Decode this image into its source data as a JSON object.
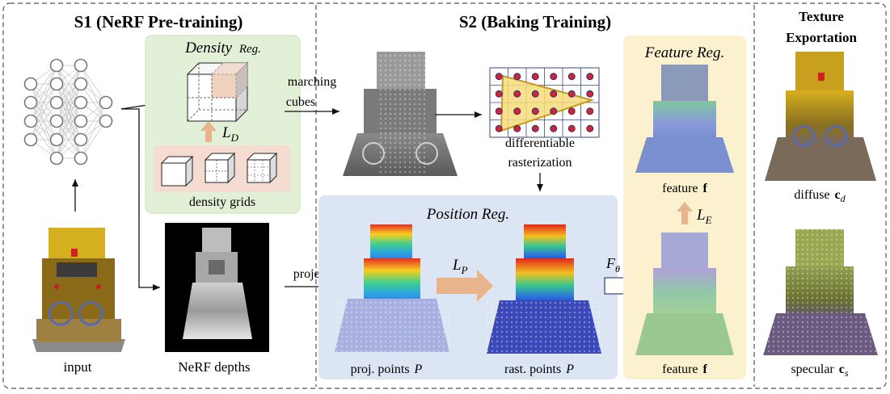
{
  "stages": {
    "s1_title": "S1 (NeRF Pre-training)",
    "s2_title": "S2 (Baking Training)",
    "s3_title_line1": "Texture",
    "s3_title_line2": "Exportation"
  },
  "density_reg": {
    "title": "Density",
    "title_suffix": "Reg.",
    "loss_label": "L",
    "loss_sub": "D",
    "grids_label": "density  grids"
  },
  "position_reg": {
    "title": "Position Reg.",
    "loss_label": "L",
    "loss_sub": "P",
    "proj_label": "proj. points",
    "proj_symbol": "P",
    "rast_label": "rast. points",
    "rast_symbol": "P"
  },
  "feature_reg": {
    "title": "Feature Reg.",
    "loss_label": "L",
    "loss_sub": "E",
    "feature_hat_label": "feature",
    "feature_hat_symbol": "f",
    "feature_label": "feature",
    "feature_symbol": "f"
  },
  "labels": {
    "input": "input",
    "nerf_depths": "NeRF depths",
    "marching": "marching",
    "cubes": "cubes",
    "project": "project",
    "diff_line1": "differentiable",
    "diff_line2": "rasterization",
    "f_theta": "F",
    "f_theta_sub": "θ"
  },
  "texture": {
    "diffuse_label": "diffuse",
    "diffuse_symbol": "c",
    "diffuse_sub": "d",
    "specular_label": "specular",
    "specular_symbol": "c",
    "specular_sub": "s"
  },
  "colors": {
    "density_bg": "#e3f0d8",
    "density_border": "#c9dfb6",
    "grids_bg": "#f5dcd0",
    "position_bg": "#dbe5f3",
    "feature_bg": "#fbf1cf",
    "loss_arrow": "#e8b48c",
    "dashed": "#555555"
  }
}
